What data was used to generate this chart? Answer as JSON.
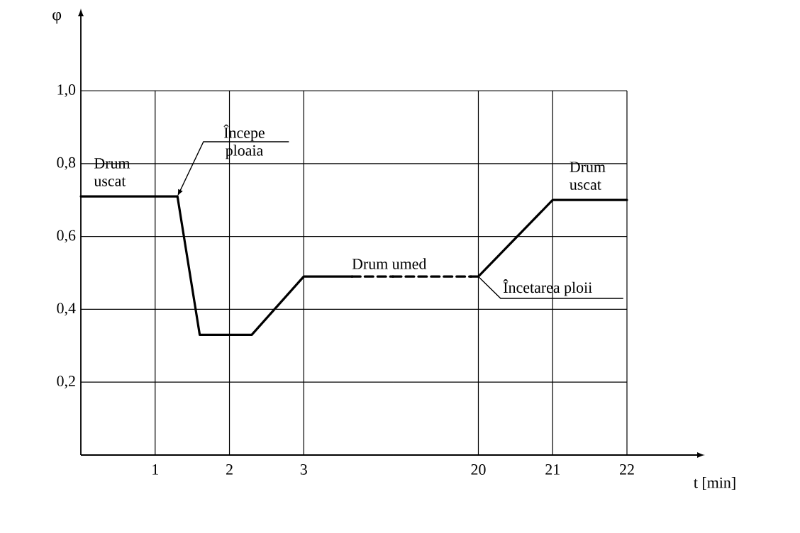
{
  "chart_data": [
    {
      "type": "line",
      "ylabel": "φ",
      "xlim": [
        0,
        4.2
      ],
      "ylim": [
        0,
        1.0
      ],
      "xticks": [
        1,
        2,
        3
      ],
      "yticks": [
        {
          "value": 0.2,
          "label": "0,2"
        },
        {
          "value": 0.4,
          "label": "0,4"
        },
        {
          "value": 0.6,
          "label": "0,6"
        },
        {
          "value": 0.8,
          "label": "0,8"
        },
        {
          "value": 1.0,
          "label": "1,0"
        }
      ],
      "grid": true,
      "marker": "none",
      "series": [
        {
          "color": "#000000",
          "line_style": "solid",
          "x": [
            0,
            1.3,
            1.6,
            2.3,
            3,
            3.65
          ],
          "values": [
            0.71,
            0.71,
            0.33,
            0.33,
            0.49,
            0.49
          ]
        },
        {
          "color": "#000000",
          "line_style": "dashed",
          "x": [
            3.65,
            4.2
          ],
          "values": [
            0.49,
            0.49
          ]
        }
      ],
      "annotations": [
        {
          "text": "Drum uscat",
          "x": 0.5,
          "y": 0.71
        },
        {
          "text": "Începe ploaia",
          "x": 1.3,
          "y": 0.71
        },
        {
          "text": "Drum umed",
          "x": 4.15,
          "y": 0.49
        }
      ]
    },
    {
      "type": "line",
      "xlabel": "t [min]",
      "xlim": [
        18.85,
        22
      ],
      "ylim": [
        0,
        1.0
      ],
      "xticks": [
        20,
        21,
        22
      ],
      "yticks": [
        0.2,
        0.4,
        0.6,
        0.8,
        1.0
      ],
      "tick_labels": "x",
      "grid": true,
      "marker": "none",
      "series": [
        {
          "color": "#000000",
          "line_style": "dashed",
          "x": [
            18.85,
            19.9
          ],
          "values": [
            0.49,
            0.49
          ]
        },
        {
          "color": "#000000",
          "line_style": "solid",
          "x": [
            19.9,
            20,
            21,
            22
          ],
          "values": [
            0.49,
            0.49,
            0.7,
            0.7
          ]
        }
      ],
      "annotations": [
        {
          "text": "Încetarea ploii",
          "x": 20,
          "y": 0.49
        },
        {
          "text": "Drum uscat",
          "x": 21.55,
          "y": 0.7
        }
      ]
    }
  ]
}
